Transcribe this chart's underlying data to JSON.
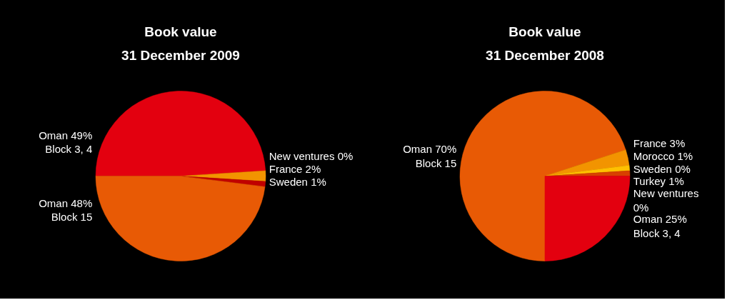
{
  "chart_data": [
    {
      "type": "pie",
      "title": "Book value\n31 December 2009",
      "categories": [
        "Oman 49%\nBlock 3, 4",
        "New ventures 0%",
        "France 2%",
        "Sweden 1%",
        "Oman 48%\nBlock 15"
      ],
      "values": [
        49,
        0,
        2,
        1,
        48
      ],
      "colors": [
        "#e3000f",
        "#ffd000",
        "#f29400",
        "#c00000",
        "#e85a05"
      ]
    },
    {
      "type": "pie",
      "title": "Book value\n31 December 2008",
      "categories": [
        "Oman 70%\nBlock 15",
        "France 3%",
        "Morocco 1%",
        "Sweden 0%",
        "Turkey 1%",
        "New ventures 0%",
        "Oman 25%\nBlock 3, 4"
      ],
      "values": [
        70,
        3,
        1,
        0,
        1,
        0,
        25
      ],
      "colors": [
        "#e85a05",
        "#f29400",
        "#ffc000",
        "#c00000",
        "#d84000",
        "#ffd000",
        "#e3000f"
      ]
    }
  ]
}
